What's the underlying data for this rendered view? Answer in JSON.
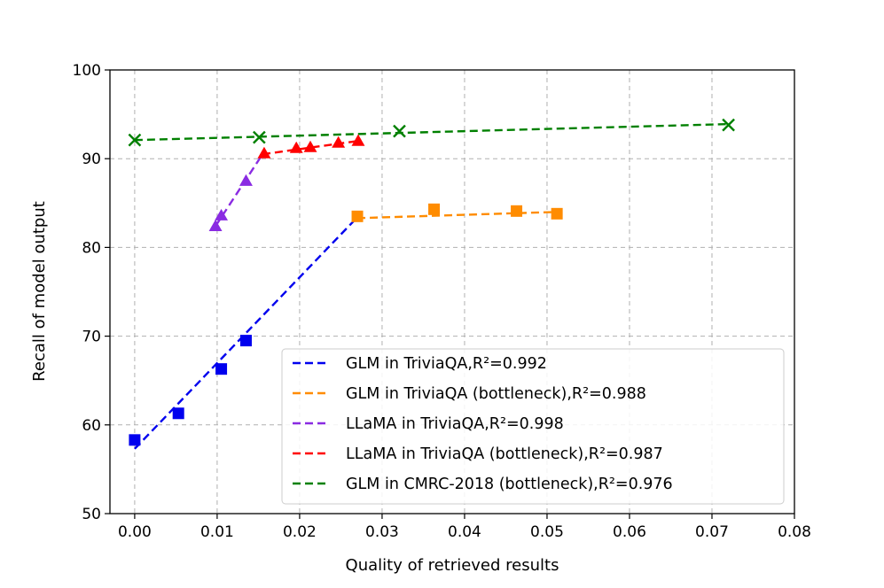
{
  "chart_data": {
    "type": "scatter",
    "title": "",
    "xlabel": "Quality of retrieved results",
    "ylabel": "Recall of model output",
    "xlim": [
      -0.003,
      0.08
    ],
    "ylim": [
      50,
      100
    ],
    "xticks": [
      "0.00",
      "0.01",
      "0.02",
      "0.03",
      "0.04",
      "0.05",
      "0.06",
      "0.07",
      "0.08"
    ],
    "yticks": [
      "50",
      "60",
      "70",
      "80",
      "90",
      "100"
    ],
    "grid": true,
    "legend_position": "lower-right",
    "series": [
      {
        "name": "GLM in TriviaQA,R²=0.992",
        "color": "#0000ee",
        "marker": "square",
        "x": [
          0.0,
          0.0053,
          0.0105,
          0.0135
        ],
        "y": [
          58.3,
          61.3,
          66.3,
          69.5
        ],
        "fit": {
          "x": [
            0.0,
            0.027
          ],
          "y": [
            57.3,
            83.4
          ]
        }
      },
      {
        "name": "GLM in TriviaQA (bottleneck),R²=0.988",
        "color": "#ff8c00",
        "marker": "square",
        "x": [
          0.027,
          0.0363,
          0.0463,
          0.0512
        ],
        "y": [
          83.5,
          84.3,
          84.1,
          83.8
        ],
        "fit": {
          "x": [
            0.027,
            0.0512
          ],
          "y": [
            83.3,
            84.0
          ]
        }
      },
      {
        "name": "LLaMA in TriviaQA,R²=0.998",
        "color": "#8a2be2",
        "marker": "triangle",
        "x": [
          0.0098,
          0.0105,
          0.0135
        ],
        "y": [
          82.4,
          83.6,
          87.5
        ],
        "fit": {
          "x": [
            0.0098,
            0.0155
          ],
          "y": [
            82.4,
            90.5
          ]
        }
      },
      {
        "name": "LLaMA in TriviaQA (bottleneck),R²=0.987",
        "color": "#ff0000",
        "marker": "triangle",
        "x": [
          0.0157,
          0.0196,
          0.0213,
          0.0247,
          0.0271
        ],
        "y": [
          90.6,
          91.2,
          91.3,
          91.8,
          92.0
        ],
        "fit": {
          "x": [
            0.0155,
            0.0271
          ],
          "y": [
            90.5,
            92.0
          ]
        }
      },
      {
        "name": "GLM in CMRC-2018 (bottleneck),R²=0.976",
        "color": "#008000",
        "marker": "x",
        "x": [
          0.0,
          0.0151,
          0.0321,
          0.072
        ],
        "y": [
          92.1,
          92.4,
          93.1,
          93.8
        ],
        "fit": {
          "x": [
            0.0,
            0.072
          ],
          "y": [
            92.1,
            93.9
          ]
        }
      }
    ]
  }
}
